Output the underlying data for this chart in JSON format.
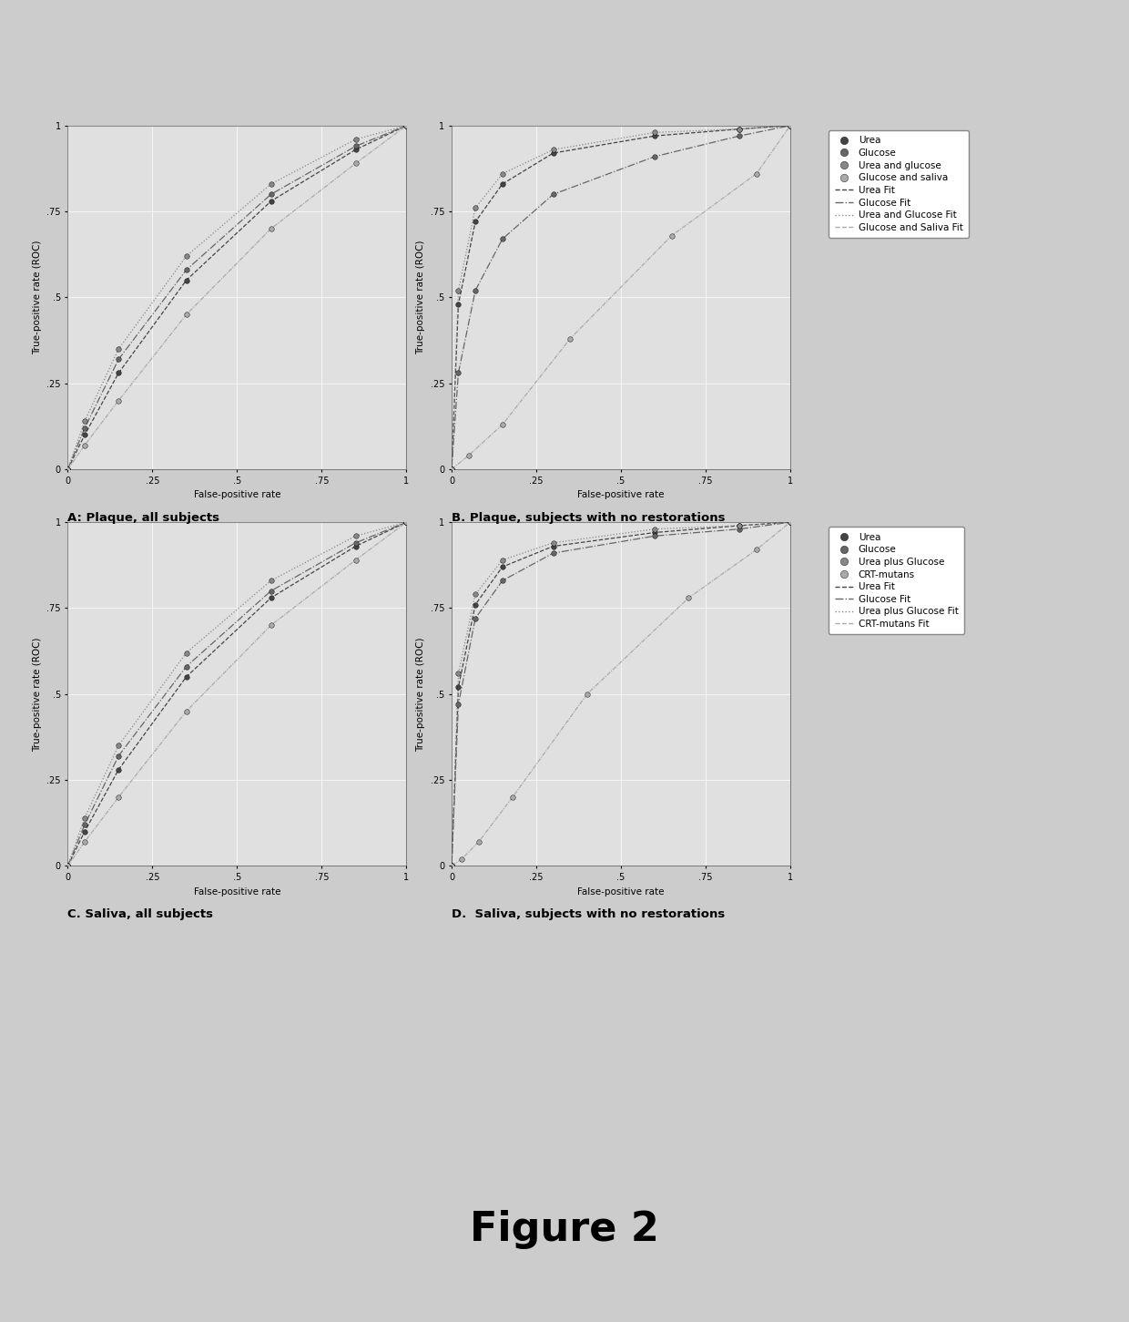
{
  "fig_title": "Figure 2",
  "background_color": "#cccccc",
  "plot_bg_color": "#e0e0e0",
  "panel_A": {
    "title": "A: Plaque, all subjects",
    "xlabel": "False-positive rate",
    "ylabel": "True-positive rate (ROC)",
    "yticks": [
      0,
      0.25,
      0.5,
      0.75,
      1
    ],
    "xticks": [
      0,
      0.25,
      0.5,
      0.75,
      1
    ],
    "curves": [
      {
        "x": [
          0,
          0.05,
          0.15,
          0.35,
          0.6,
          0.85,
          1.0
        ],
        "y": [
          0,
          0.1,
          0.28,
          0.55,
          0.78,
          0.93,
          1.0
        ],
        "color": "#444444"
      },
      {
        "x": [
          0,
          0.05,
          0.15,
          0.35,
          0.6,
          0.85,
          1.0
        ],
        "y": [
          0,
          0.12,
          0.32,
          0.58,
          0.8,
          0.94,
          1.0
        ],
        "color": "#666666"
      },
      {
        "x": [
          0,
          0.05,
          0.15,
          0.35,
          0.6,
          0.85,
          1.0
        ],
        "y": [
          0,
          0.14,
          0.35,
          0.62,
          0.83,
          0.96,
          1.0
        ],
        "color": "#888888"
      },
      {
        "x": [
          0,
          0.05,
          0.15,
          0.35,
          0.6,
          0.85,
          1.0
        ],
        "y": [
          0,
          0.07,
          0.2,
          0.45,
          0.7,
          0.89,
          1.0
        ],
        "color": "#aaaaaa"
      }
    ]
  },
  "panel_B": {
    "title": "B. Plaque, subjects with no restorations",
    "xlabel": "False-positive rate",
    "ylabel": "True-positive rate (ROC)",
    "yticks": [
      0,
      0.25,
      0.5,
      0.75,
      1
    ],
    "xticks": [
      0,
      0.25,
      0.5,
      0.75,
      1
    ],
    "curves": [
      {
        "x": [
          0,
          0.02,
          0.07,
          0.15,
          0.3,
          0.6,
          0.85,
          1.0
        ],
        "y": [
          0,
          0.48,
          0.72,
          0.83,
          0.92,
          0.97,
          0.99,
          1.0
        ],
        "color": "#444444"
      },
      {
        "x": [
          0,
          0.02,
          0.07,
          0.15,
          0.3,
          0.6,
          0.85,
          1.0
        ],
        "y": [
          0,
          0.28,
          0.52,
          0.67,
          0.8,
          0.91,
          0.97,
          1.0
        ],
        "color": "#666666"
      },
      {
        "x": [
          0,
          0.02,
          0.07,
          0.15,
          0.3,
          0.6,
          0.85,
          1.0
        ],
        "y": [
          0,
          0.52,
          0.76,
          0.86,
          0.93,
          0.98,
          0.99,
          1.0
        ],
        "color": "#888888"
      },
      {
        "x": [
          0,
          0.05,
          0.15,
          0.35,
          0.65,
          0.9,
          1.0
        ],
        "y": [
          0,
          0.04,
          0.13,
          0.38,
          0.68,
          0.86,
          1.0
        ],
        "color": "#aaaaaa"
      }
    ]
  },
  "panel_C": {
    "title": "C. Saliva, all subjects",
    "xlabel": "False-positive rate",
    "ylabel": "True-positive rate (ROC)",
    "yticks": [
      0,
      0.25,
      0.5,
      0.75,
      1
    ],
    "xticks": [
      0,
      0.25,
      0.5,
      0.75,
      1
    ],
    "curves": [
      {
        "x": [
          0,
          0.05,
          0.15,
          0.35,
          0.6,
          0.85,
          1.0
        ],
        "y": [
          0,
          0.1,
          0.28,
          0.55,
          0.78,
          0.93,
          1.0
        ],
        "color": "#444444"
      },
      {
        "x": [
          0,
          0.05,
          0.15,
          0.35,
          0.6,
          0.85,
          1.0
        ],
        "y": [
          0,
          0.12,
          0.32,
          0.58,
          0.8,
          0.94,
          1.0
        ],
        "color": "#666666"
      },
      {
        "x": [
          0,
          0.05,
          0.15,
          0.35,
          0.6,
          0.85,
          1.0
        ],
        "y": [
          0,
          0.14,
          0.35,
          0.62,
          0.83,
          0.96,
          1.0
        ],
        "color": "#888888"
      },
      {
        "x": [
          0,
          0.05,
          0.15,
          0.35,
          0.6,
          0.85,
          1.0
        ],
        "y": [
          0,
          0.07,
          0.2,
          0.45,
          0.7,
          0.89,
          1.0
        ],
        "color": "#aaaaaa"
      }
    ]
  },
  "panel_D": {
    "title": "D.  Saliva, subjects with no restorations",
    "xlabel": "False-positive rate",
    "ylabel": "True-positive rate (ROC)",
    "yticks": [
      0,
      0.25,
      0.5,
      0.75,
      1
    ],
    "xticks": [
      0,
      0.25,
      0.5,
      0.75,
      1
    ],
    "curves": [
      {
        "x": [
          0,
          0.02,
          0.07,
          0.15,
          0.3,
          0.6,
          0.85,
          1.0
        ],
        "y": [
          0,
          0.52,
          0.76,
          0.87,
          0.93,
          0.97,
          0.99,
          1.0
        ],
        "color": "#444444"
      },
      {
        "x": [
          0,
          0.02,
          0.07,
          0.15,
          0.3,
          0.6,
          0.85,
          1.0
        ],
        "y": [
          0,
          0.47,
          0.72,
          0.83,
          0.91,
          0.96,
          0.98,
          1.0
        ],
        "color": "#666666"
      },
      {
        "x": [
          0,
          0.02,
          0.07,
          0.15,
          0.3,
          0.6,
          0.85,
          1.0
        ],
        "y": [
          0,
          0.56,
          0.79,
          0.89,
          0.94,
          0.98,
          0.99,
          1.0
        ],
        "color": "#888888"
      },
      {
        "x": [
          0,
          0.03,
          0.08,
          0.18,
          0.4,
          0.7,
          0.9,
          1.0
        ],
        "y": [
          0,
          0.02,
          0.07,
          0.2,
          0.5,
          0.78,
          0.92,
          1.0
        ],
        "color": "#aaaaaa"
      }
    ]
  },
  "legend_top": {
    "entries": [
      {
        "label": "Urea",
        "color": "#444444",
        "is_marker": true
      },
      {
        "label": "Glucose",
        "color": "#666666",
        "is_marker": true
      },
      {
        "label": "Urea and glucose",
        "color": "#888888",
        "is_marker": true
      },
      {
        "label": "Glucose and saliva",
        "color": "#aaaaaa",
        "is_marker": true
      },
      {
        "label": "Urea Fit",
        "color": "#444444",
        "is_marker": false,
        "ls": "--"
      },
      {
        "label": "Glucose Fit",
        "color": "#666666",
        "is_marker": false,
        "ls": "-."
      },
      {
        "label": "Urea and Glucose Fit",
        "color": "#888888",
        "is_marker": false,
        "ls": ":"
      },
      {
        "label": "Glucose and Saliva Fit",
        "color": "#aaaaaa",
        "is_marker": false,
        "ls": "--"
      }
    ]
  },
  "legend_bottom": {
    "entries": [
      {
        "label": "Urea",
        "color": "#444444",
        "is_marker": true
      },
      {
        "label": "Glucose",
        "color": "#666666",
        "is_marker": true
      },
      {
        "label": "Urea plus Glucose",
        "color": "#888888",
        "is_marker": true
      },
      {
        "label": "CRT-mutans",
        "color": "#aaaaaa",
        "is_marker": true
      },
      {
        "label": "Urea Fit",
        "color": "#444444",
        "is_marker": false,
        "ls": "--"
      },
      {
        "label": "Glucose Fit",
        "color": "#666666",
        "is_marker": false,
        "ls": "-."
      },
      {
        "label": "Urea plus Glucose Fit",
        "color": "#888888",
        "is_marker": false,
        "ls": ":"
      },
      {
        "label": "CRT-mutans Fit",
        "color": "#aaaaaa",
        "is_marker": false,
        "ls": "--"
      }
    ]
  },
  "tick_labels": [
    "0",
    ".25",
    ".5",
    ".75",
    "1"
  ]
}
